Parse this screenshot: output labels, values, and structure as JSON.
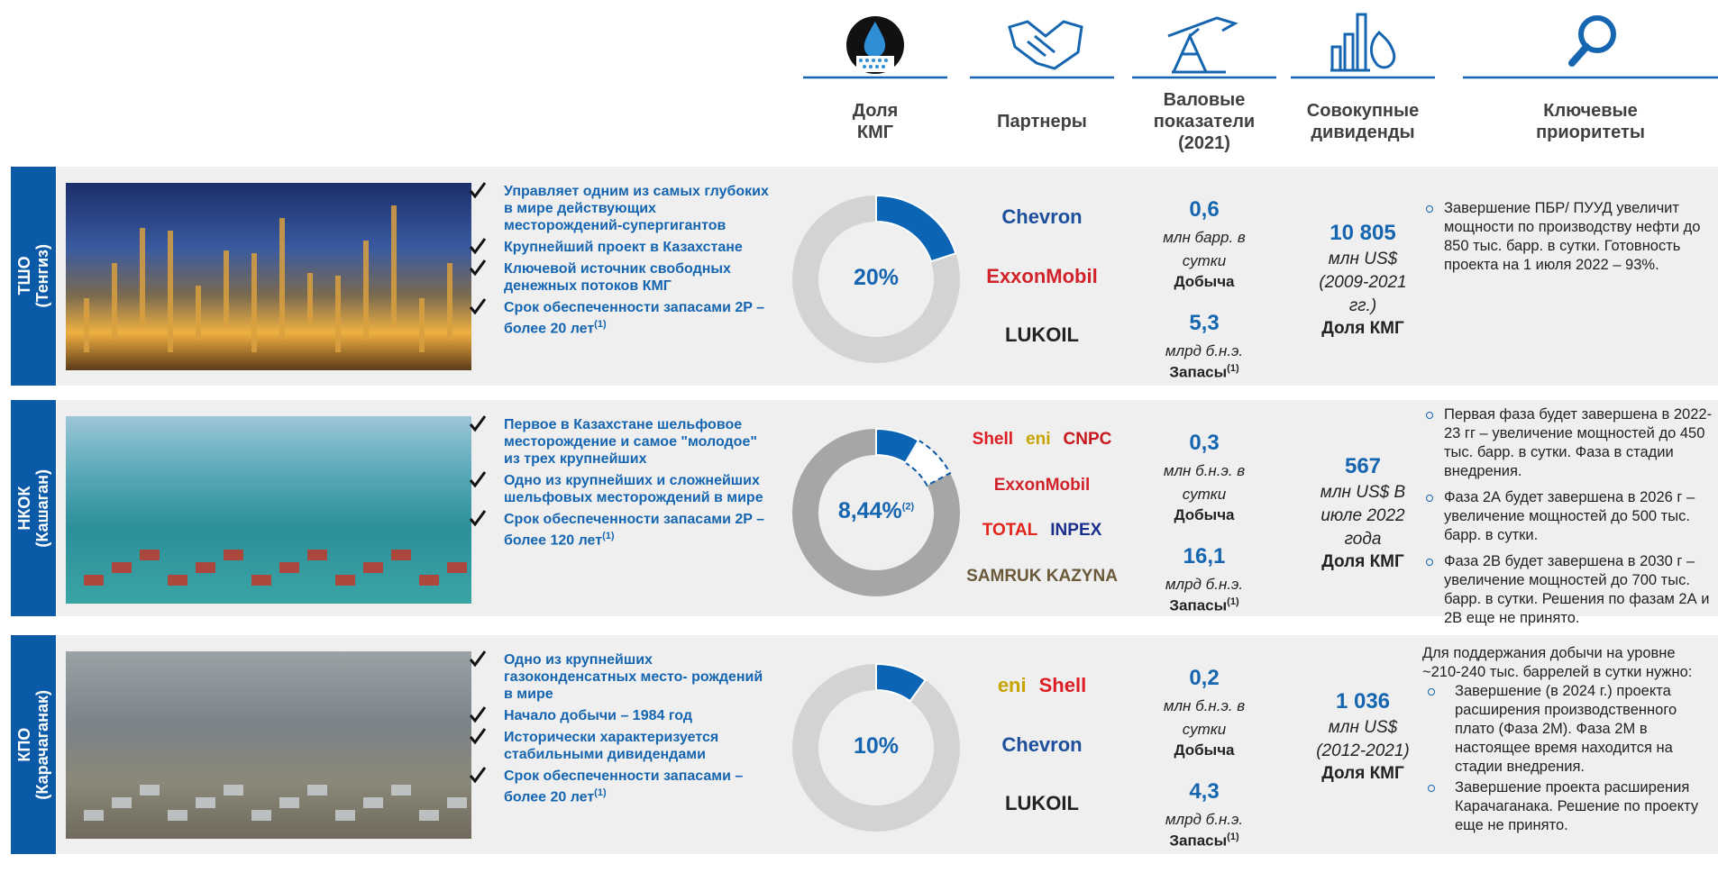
{
  "header": {
    "columns": [
      "Доля КМГ",
      "Партнеры",
      "Валовые показатели (2021)",
      "Совокупные дивиденды",
      "Ключевые приоритеты"
    ]
  },
  "rows": [
    {
      "name": "ТШО",
      "sub": "(Тенгиз)",
      "bullets": [
        {
          "text": "Управляет одним из самых глубоких в мире действующих месторождений-супергигантов"
        },
        {
          "text": "Крупнейший проект в Казахстане"
        },
        {
          "text": "Ключевой источник свободных денежных потоков КМГ"
        },
        {
          "text": "Срок обеспеченности запасами 2P – более 20 лет",
          "sup": "(1)"
        }
      ],
      "share": 20,
      "share_label": "20%",
      "partners": [
        {
          "name": "Chevron",
          "color": "#1d4f9c"
        },
        {
          "name": "ExxonMobil",
          "color": "#d2232a"
        },
        {
          "name": "LUKOIL",
          "color": "#222222"
        }
      ],
      "production": {
        "value": "0,6",
        "unit": "млн барр. в сутки",
        "label": "Добыча"
      },
      "reserves": {
        "value": "5,3",
        "unit": "млрд б.н.э.",
        "label": "Запасы",
        "sup": "(1)"
      },
      "dividends": {
        "value": "10 805",
        "unit": "млн US$ (2009-2021 гг.)",
        "label": "Доля КМГ"
      },
      "priorities": [
        "Завершение ПБР/ ПУУД увеличит мощности по производству нефти до 850 тыс. барр. в сутки. Готовность проекта на 1 июля 2022 – 93%."
      ]
    },
    {
      "name": "НКОК",
      "sub": "(Кашаган)",
      "bullets": [
        {
          "text": "Первое в Казахстане шельфовое месторождение и самое \"молодое\" из трех крупнейших"
        },
        {
          "text": "Одно из крупнейших и сложнейших шельфовых месторождений в мире"
        },
        {
          "text": "Срок обеспеченности запасами 2P – более 120 лет",
          "sup": "(1)"
        }
      ],
      "share": 8.44,
      "share_label": "8,44%",
      "share_sup": "(2)",
      "partners": [
        {
          "name": "Shell",
          "color": "#dd1d21"
        },
        {
          "name": "eni",
          "color": "#c8a400"
        },
        {
          "name": "CNPC",
          "color": "#c8161d"
        },
        {
          "name": "ExxonMobil",
          "color": "#d2232a"
        },
        {
          "name": "TOTAL",
          "color": "#e2231a"
        },
        {
          "name": "INPEX",
          "color": "#1a2f8c"
        },
        {
          "name": "SAMRUK KAZYNA",
          "color": "#6a5a3a"
        }
      ],
      "production": {
        "value": "0,3",
        "unit": "млн б.н.э. в сутки",
        "label": "Добыча"
      },
      "reserves": {
        "value": "16,1",
        "unit": "млрд б.н.э.",
        "label": "Запасы",
        "sup": "(1)"
      },
      "dividends": {
        "value": "567",
        "unit": "млн US$ В июле 2022 года",
        "label": "Доля КМГ"
      },
      "priorities": [
        "Первая фаза будет завершена в 2022-23 гг – увеличение мощностей до 450 тыс. барр. в сутки. Фаза в стадии внедрения.",
        "Фаза 2А будет завершена в 2026 г – увеличение мощностей до 500 тыс. барр. в сутки.",
        "Фаза 2В будет завершена в 2030 г – увеличение мощностей до 700 тыс. барр. в сутки. Решения по фазам 2А и 2В еще не принято."
      ]
    },
    {
      "name": "КПО",
      "sub": "(Карачаганак)",
      "bullets": [
        {
          "text": "Одно из крупнейших газоконденсатных место- рождений в мире"
        },
        {
          "text": "Начало добычи – 1984 год"
        },
        {
          "text": "Исторически характеризуется стабильными дивидендами"
        },
        {
          "text": "Срок обеспеченности запасами – более 20 лет",
          "sup": "(1)"
        }
      ],
      "share": 10,
      "share_label": "10%",
      "partners": [
        {
          "name": "eni",
          "color": "#c8a400"
        },
        {
          "name": "Shell",
          "color": "#dd1d21"
        },
        {
          "name": "Chevron",
          "color": "#1d4f9c"
        },
        {
          "name": "LUKOIL",
          "color": "#222222"
        }
      ],
      "production": {
        "value": "0,2",
        "unit": "млн б.н.э. в сутки",
        "label": "Добыча"
      },
      "reserves": {
        "value": "4,3",
        "unit": "млрд б.н.э.",
        "label": "Запасы",
        "sup": "(1)"
      },
      "dividends": {
        "value": "1 036",
        "unit": "млн US$ (2012-2021)",
        "label": "Доля КМГ"
      },
      "priorities_intro": "Для поддержания добычи на уровне ~210-240 тыс. баррелей в сутки нужно:",
      "priorities": [
        "Завершение (в 2024 г.) проекта расширения производственного плато (Фаза 2М). Фаза 2М в настоящее время находится на стадии внедрения.",
        "Завершение проекта расширения Карачаганака. Решение по проекту еще не принято."
      ]
    }
  ]
}
